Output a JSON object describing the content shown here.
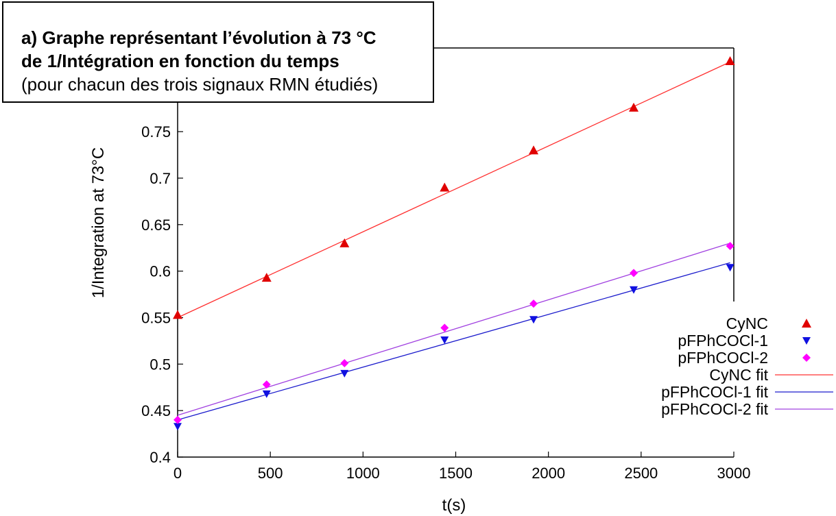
{
  "caption": {
    "line1": "a) Graphe représentant l’évolution à 73 °C",
    "line2": "de 1/Intégration en fonction du temps",
    "line3": "(pour chacun des trois signaux RMN étudiés)"
  },
  "chart_data": {
    "type": "scatter",
    "title": "",
    "xlabel": "t(s)",
    "ylabel": "1/Integration at 73°C",
    "xlim": [
      0,
      3000
    ],
    "ylim": [
      0.4,
      0.84
    ],
    "xticks": [
      "0",
      "500",
      "1000",
      "1500",
      "2000",
      "2500",
      "3000"
    ],
    "xtick_values": [
      0,
      500,
      1000,
      1500,
      2000,
      2500,
      3000
    ],
    "yticks": [
      "0.4",
      "0.45",
      "0.5",
      "0.55",
      "0.6",
      "0.65",
      "0.7",
      "0.75"
    ],
    "ytick_values": [
      0.4,
      0.45,
      0.5,
      0.55,
      0.6,
      0.65,
      0.7,
      0.75
    ],
    "grid": false,
    "legend_position": "bottom-right",
    "series": [
      {
        "name": "CyNC",
        "marker": "triangle-up",
        "color": "#e00000",
        "x": [
          0,
          480,
          900,
          1440,
          1920,
          2460,
          2980
        ],
        "y": [
          0.553,
          0.593,
          0.63,
          0.69,
          0.73,
          0.776,
          0.826
        ]
      },
      {
        "name": "pFPhCOCl-1",
        "marker": "triangle-down",
        "color": "#1010e0",
        "x": [
          0,
          480,
          900,
          1440,
          1920,
          2460,
          2980
        ],
        "y": [
          0.433,
          0.468,
          0.49,
          0.526,
          0.548,
          0.58,
          0.604
        ]
      },
      {
        "name": "pFPhCOCl-2",
        "marker": "diamond",
        "color": "#ff00ff",
        "x": [
          0,
          480,
          900,
          1440,
          1920,
          2460,
          2980
        ],
        "y": [
          0.44,
          0.478,
          0.501,
          0.539,
          0.565,
          0.598,
          0.627
        ]
      }
    ],
    "fits": [
      {
        "name": "CyNC fit",
        "color": "#ff3030",
        "x": [
          0,
          2980
        ],
        "y": [
          0.55,
          0.825
        ]
      },
      {
        "name": "pFPhCOCl-1 fit",
        "color": "#1a1acc",
        "x": [
          0,
          2980
        ],
        "y": [
          0.44,
          0.609
        ]
      },
      {
        "name": "pFPhCOCl-2 fit",
        "color": "#a040e0",
        "x": [
          0,
          2980
        ],
        "y": [
          0.445,
          0.63
        ]
      }
    ]
  }
}
